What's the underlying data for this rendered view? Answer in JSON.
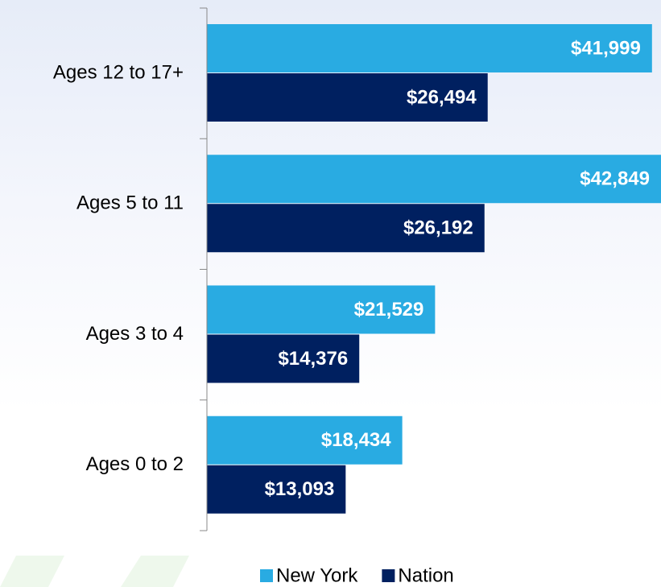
{
  "chart_data": {
    "type": "hbar",
    "categories": [
      "Ages 12 to 17+",
      "Ages 5 to 11",
      "Ages 3 to 4",
      "Ages 0 to 2"
    ],
    "series": [
      {
        "name": "New York",
        "color": "#29abe2",
        "values": [
          41999,
          42849,
          21529,
          18434
        ],
        "value_labels": [
          "$41,999",
          "$42,849",
          "$21,529",
          "$18,434"
        ]
      },
      {
        "name": "Nation",
        "color": "#002060",
        "values": [
          26494,
          26192,
          14376,
          13093
        ],
        "value_labels": [
          "$26,494",
          "$26,192",
          "$14,376",
          "$13,093"
        ]
      }
    ],
    "xlim": [
      0,
      42849
    ],
    "legend": "bottom"
  }
}
